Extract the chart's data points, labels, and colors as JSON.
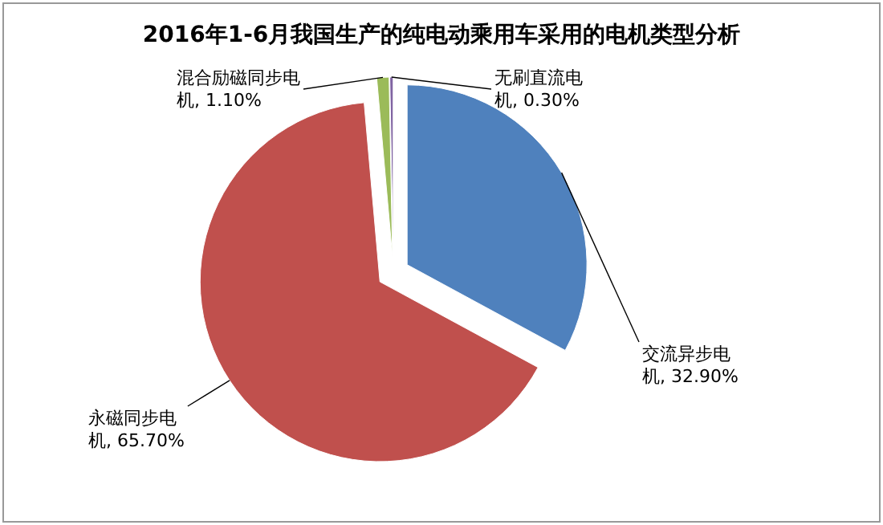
{
  "chart_data": {
    "type": "pie",
    "title": "2016年1-6月我国生产的纯电动乘用车采用的电机类型分析",
    "categories": [
      "交流异步电机",
      "永磁同步电机",
      "混合励磁同步电机",
      "无刷直流电机"
    ],
    "values": [
      32.9,
      65.7,
      1.1,
      0.3
    ],
    "value_labels": [
      "32.90%",
      "65.70%",
      "1.10%",
      "0.30%"
    ],
    "colors": [
      "#4f81bd",
      "#c0504d",
      "#9bbb59",
      "#8064a2"
    ]
  }
}
